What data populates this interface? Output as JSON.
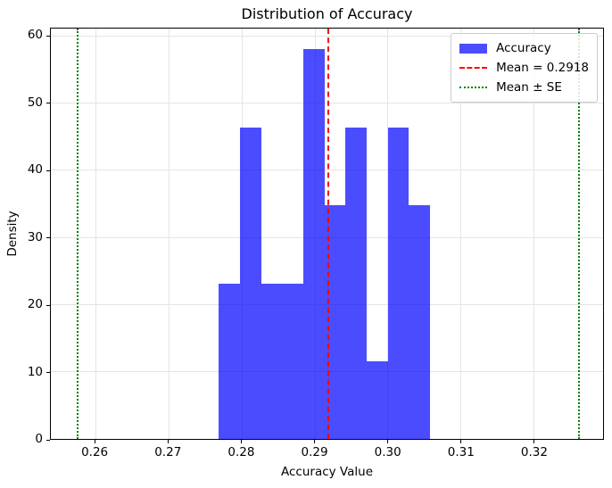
{
  "chart_data": {
    "type": "bar",
    "variant": "histogram-density",
    "title": "Distribution of Accuracy",
    "xlabel": "Accuracy Value",
    "ylabel": "Density",
    "xlim": [
      0.2539,
      0.3295
    ],
    "ylim": [
      0,
      61.2
    ],
    "xtick_values": [
      0.26,
      0.27,
      0.28,
      0.29,
      0.3,
      0.31,
      0.32
    ],
    "xtick_labels": [
      "0.26",
      "0.27",
      "0.28",
      "0.29",
      "0.30",
      "0.31",
      "0.32"
    ],
    "ytick_values": [
      0,
      10,
      20,
      30,
      40,
      50,
      60
    ],
    "ytick_labels": [
      "0",
      "10",
      "20",
      "30",
      "40",
      "50",
      "60"
    ],
    "grid": true,
    "histogram": {
      "bin_start": 0.2769,
      "bin_width": 0.00289,
      "densities": [
        23.2,
        46.5,
        23.2,
        23.2,
        58.1,
        34.9,
        46.5,
        11.6,
        46.5,
        34.9
      ],
      "fill_color": "#0000ff",
      "fill_opacity": 0.7
    },
    "mean_line": {
      "value": 0.2918,
      "color": "#ff0000",
      "style": "dashed"
    },
    "se_lines": {
      "values": [
        0.2575,
        0.3261
      ],
      "color": "#008000",
      "style": "dotted"
    },
    "legend": {
      "position": "upper-right",
      "items": [
        {
          "label": "Accuracy",
          "swatch": "patch",
          "color": "#0000ff"
        },
        {
          "label": "Mean = 0.2918",
          "swatch": "dashed-line",
          "color": "#ff0000"
        },
        {
          "label": "Mean ± SE",
          "swatch": "dotted-line",
          "color": "#008000"
        }
      ]
    },
    "colors": {
      "grid": "#e4e4e4",
      "spine": "#000000",
      "text": "#000000"
    }
  }
}
